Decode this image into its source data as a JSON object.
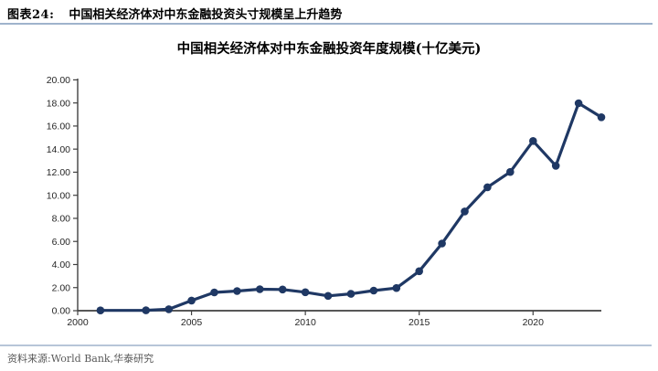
{
  "header": {
    "tag": "图表24:",
    "title": "中国相关经济体对中东金融投资头寸规模呈上升趋势"
  },
  "footer": {
    "source": "资料来源:World Bank,华泰研究"
  },
  "colors": {
    "line": "#1F3864",
    "marker": "#1F3864",
    "axis": "#404040",
    "header_rule": "#9FB3CC",
    "footer_rule": "#B7C5D8",
    "source_text": "#595959"
  },
  "chart_data": {
    "type": "line",
    "title": "中国相关经济体对中东金融投资年度规模(十亿美元)",
    "x": [
      2001,
      2003,
      2004,
      2005,
      2006,
      2007,
      2008,
      2009,
      2010,
      2011,
      2012,
      2013,
      2014,
      2015,
      2016,
      2017,
      2018,
      2019,
      2020,
      2021,
      2022,
      2023
    ],
    "values": [
      0.02,
      0.03,
      0.13,
      0.88,
      1.58,
      1.7,
      1.86,
      1.84,
      1.6,
      1.28,
      1.46,
      1.74,
      1.96,
      3.42,
      5.82,
      8.6,
      10.7,
      12.02,
      14.7,
      12.56,
      17.97,
      16.76
    ],
    "x_ticks": [
      "2000",
      "2005",
      "2010",
      "2015",
      "2020"
    ],
    "y_ticks": [
      "0.00",
      "2.00",
      "4.00",
      "6.00",
      "8.00",
      "10.00",
      "12.00",
      "14.00",
      "16.00",
      "18.00",
      "20.00"
    ],
    "xlim": [
      2000,
      2023
    ],
    "ylim": [
      0,
      20
    ],
    "grid": false,
    "legend": "none",
    "note": "no data point for 2002"
  }
}
